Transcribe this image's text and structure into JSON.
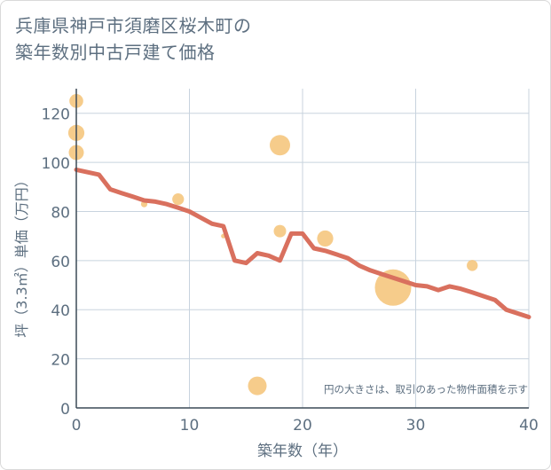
{
  "chart_data": {
    "type": "line+bubble",
    "title_lines": [
      "兵庫県神戸市須磨区桜木町の",
      "築年数別中古戸建て価格"
    ],
    "xlabel": "築年数（年）",
    "ylabel": "坪（3.3㎡）単価（万円）",
    "xlim": [
      0,
      40
    ],
    "ylim": [
      0,
      130
    ],
    "xticks": [
      "0",
      "10",
      "20",
      "30",
      "40"
    ],
    "yticks": [
      "0",
      "20",
      "40",
      "60",
      "80",
      "100",
      "120"
    ],
    "grid": true,
    "annotation": "円の大きさは、取引のあった物件面積を示す",
    "colors": {
      "line": "#d9705e",
      "bubble": "#f5c77e",
      "grid": "#c8d3de",
      "text": "#5d6f80"
    },
    "series": [
      {
        "type": "line",
        "x": [
          0,
          1,
          2,
          3,
          4,
          5,
          6,
          7,
          8,
          9,
          10,
          11,
          12,
          13,
          14,
          15,
          16,
          17,
          18,
          19,
          20,
          21,
          22,
          23,
          24,
          25,
          26,
          27,
          28,
          29,
          30,
          31,
          32,
          33,
          34,
          35,
          36,
          37,
          38,
          39,
          40
        ],
        "y": [
          97,
          96,
          95,
          89,
          87.5,
          86,
          84.5,
          84,
          83,
          81.5,
          80,
          77.5,
          75,
          74,
          60,
          59,
          63,
          62,
          60,
          71,
          71,
          65,
          64,
          62.5,
          61,
          58,
          56,
          54.5,
          53,
          51.5,
          50,
          49.5,
          48,
          49.5,
          48.5,
          47,
          45.5,
          44,
          40,
          38.5,
          37
        ]
      },
      {
        "type": "bubble",
        "points": [
          {
            "x": 0,
            "y": 125,
            "size": 55
          },
          {
            "x": 0,
            "y": 112,
            "size": 75
          },
          {
            "x": 0,
            "y": 104,
            "size": 65
          },
          {
            "x": 6,
            "y": 83,
            "size": 12
          },
          {
            "x": 9,
            "y": 85,
            "size": 40
          },
          {
            "x": 13,
            "y": 70,
            "size": 6
          },
          {
            "x": 16,
            "y": 9,
            "size": 100
          },
          {
            "x": 18,
            "y": 107,
            "size": 120
          },
          {
            "x": 18,
            "y": 72,
            "size": 45
          },
          {
            "x": 22,
            "y": 69,
            "size": 75
          },
          {
            "x": 28,
            "y": 49,
            "size": 380
          },
          {
            "x": 35,
            "y": 58,
            "size": 35
          }
        ]
      }
    ]
  }
}
